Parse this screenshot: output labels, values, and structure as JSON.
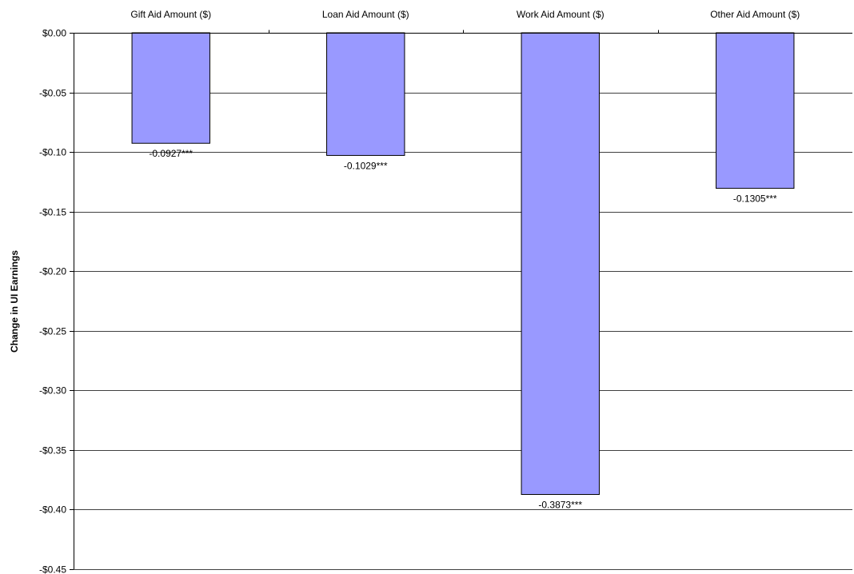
{
  "chart_data": {
    "type": "bar",
    "categories": [
      "Gift Aid Amount ($)",
      "Loan Aid Amount ($)",
      "Work Aid Amount ($)",
      "Other Aid Amount ($)"
    ],
    "values": [
      -0.0927,
      -0.1029,
      -0.3873,
      -0.1305
    ],
    "data_labels": [
      "-0.0927***",
      "-0.1029***",
      "-0.3873***",
      "-0.1305***"
    ],
    "ylabel": "Change in UI Earnings",
    "ylim": [
      -0.45,
      0.0
    ],
    "yticks": [
      0.0,
      -0.05,
      -0.1,
      -0.15,
      -0.2,
      -0.25,
      -0.3,
      -0.35,
      -0.4,
      -0.45
    ],
    "ytick_labels": [
      "$0.00",
      "-$0.05",
      "-$0.10",
      "-$0.15",
      "-$0.20",
      "-$0.25",
      "-$0.30",
      "-$0.35",
      "-$0.40",
      "-$0.45"
    ],
    "category_axis_position": "top",
    "grid": true,
    "colors": {
      "bar_fill": "#9999ff",
      "bar_stroke": "#000000",
      "grid": "#000000"
    }
  }
}
